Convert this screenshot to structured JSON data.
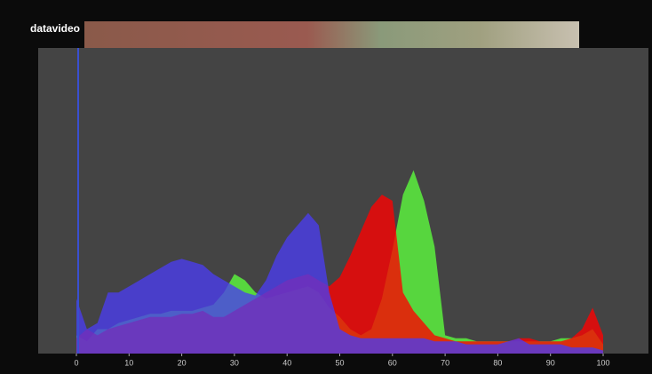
{
  "header": {
    "logo": "datavideo"
  },
  "chart_data": {
    "type": "area",
    "x": [
      0,
      2,
      4,
      6,
      8,
      10,
      12,
      14,
      16,
      18,
      20,
      22,
      24,
      26,
      28,
      30,
      32,
      34,
      36,
      38,
      40,
      42,
      44,
      46,
      48,
      50,
      52,
      54,
      56,
      58,
      60,
      62,
      64,
      66,
      68,
      70,
      72,
      74,
      76,
      78,
      80,
      82,
      84,
      86,
      88,
      90,
      92,
      94,
      96,
      98,
      100
    ],
    "series": [
      {
        "color": "#5cff3c",
        "values": [
          6,
          4,
          8,
          8,
          10,
          11,
          12,
          13,
          13,
          14,
          14,
          14,
          15,
          16,
          20,
          26,
          24,
          20,
          18,
          19,
          20,
          21,
          22,
          20,
          15,
          12,
          8,
          6,
          8,
          18,
          34,
          52,
          60,
          50,
          35,
          6,
          5,
          5,
          4,
          4,
          4,
          4,
          4,
          4,
          4,
          4,
          5,
          5,
          6,
          8,
          3
        ]
      },
      {
        "color": "#ff0000",
        "values": [
          5,
          8,
          6,
          8,
          9,
          10,
          11,
          12,
          12,
          12,
          13,
          13,
          14,
          12,
          12,
          14,
          16,
          18,
          20,
          22,
          24,
          25,
          26,
          24,
          22,
          25,
          32,
          40,
          48,
          52,
          50,
          20,
          14,
          10,
          6,
          5,
          4,
          4,
          4,
          4,
          4,
          4,
          5,
          5,
          4,
          4,
          4,
          5,
          8,
          15,
          6
        ]
      },
      {
        "color": "#4a3cf0",
        "values": [
          18,
          8,
          10,
          20,
          20,
          22,
          24,
          26,
          28,
          30,
          31,
          30,
          29,
          26,
          24,
          22,
          20,
          19,
          24,
          32,
          38,
          42,
          46,
          42,
          20,
          8,
          6,
          5,
          5,
          5,
          5,
          5,
          5,
          5,
          4,
          4,
          4,
          3,
          3,
          3,
          3,
          4,
          5,
          3,
          3,
          3,
          3,
          2,
          2,
          2,
          1
        ]
      }
    ],
    "xlim": [
      -7.25,
      108.6
    ],
    "ylim": [
      0,
      100
    ],
    "xticks": [
      0,
      10,
      20,
      30,
      40,
      50,
      60,
      70,
      80,
      90,
      100
    ]
  }
}
